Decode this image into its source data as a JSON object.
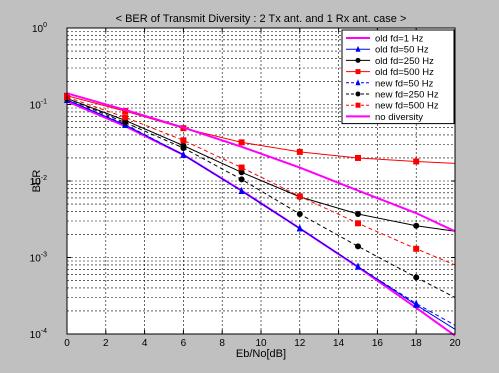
{
  "chart_data": {
    "type": "line",
    "title": "< BER of Transmit Diversity : 2 Tx ant. and 1 Rx ant. case >",
    "xlabel": "Eb/No[dB]",
    "ylabel": "BER",
    "xlim": [
      0,
      20
    ],
    "ylim": [
      0.0001,
      1
    ],
    "yscale": "log",
    "grid": true,
    "legend_position": "top-right",
    "x_ticks": [
      "0",
      "2",
      "4",
      "6",
      "8",
      "10",
      "12",
      "14",
      "16",
      "18",
      "20"
    ],
    "y_ticks": [
      {
        "base": "10",
        "exp": "0",
        "value": 1
      },
      {
        "base": "10",
        "exp": "-1",
        "value": 0.1
      },
      {
        "base": "10",
        "exp": "-2",
        "value": 0.01
      },
      {
        "base": "10",
        "exp": "-3",
        "value": 0.001
      },
      {
        "base": "10",
        "exp": "-4",
        "value": 0.0001
      }
    ],
    "series": [
      {
        "name": "old fd=1 Hz",
        "color": "#ff00ff",
        "marker": "none",
        "dash": "solid",
        "width": 2,
        "x": [
          0,
          3,
          6,
          9,
          12,
          15,
          18,
          20
        ],
        "y": [
          0.11,
          0.052,
          0.022,
          0.0075,
          0.0024,
          0.00075,
          0.00022,
          9.5e-05
        ]
      },
      {
        "name": "old fd=50 Hz",
        "color": "#0000ff",
        "marker": "triangle",
        "dash": "solid",
        "width": 1,
        "x": [
          0,
          3,
          6,
          9,
          12,
          15,
          18,
          20
        ],
        "y": [
          0.115,
          0.054,
          0.022,
          0.0074,
          0.0024,
          0.00076,
          0.00024,
          0.000115
        ]
      },
      {
        "name": "old fd=250 Hz",
        "color": "#000000",
        "marker": "circle",
        "dash": "solid",
        "width": 1,
        "x": [
          0,
          3,
          6,
          9,
          12,
          15,
          18,
          20
        ],
        "y": [
          0.12,
          0.062,
          0.029,
          0.013,
          0.0062,
          0.0037,
          0.0026,
          0.0022
        ]
      },
      {
        "name": "old fd=500 Hz",
        "color": "#ff0000",
        "marker": "square",
        "dash": "solid",
        "width": 1,
        "x": [
          0,
          3,
          6,
          9,
          12,
          15,
          18,
          20
        ],
        "y": [
          0.13,
          0.082,
          0.049,
          0.032,
          0.024,
          0.02,
          0.018,
          0.017
        ]
      },
      {
        "name": "new fd=50 Hz",
        "color": "#0000ff",
        "marker": "triangle",
        "dash": "dash",
        "width": 1,
        "x": [
          0,
          3,
          6,
          9,
          12,
          15,
          18,
          20
        ],
        "y": [
          0.115,
          0.055,
          0.022,
          0.0074,
          0.0024,
          0.00076,
          0.00025,
          0.00013
        ]
      },
      {
        "name": "new fd=250 Hz",
        "color": "#000000",
        "marker": "circle",
        "dash": "dash",
        "width": 1,
        "x": [
          0,
          3,
          6,
          9,
          12,
          15,
          18,
          20
        ],
        "y": [
          0.12,
          0.058,
          0.027,
          0.0105,
          0.0037,
          0.0014,
          0.00055,
          0.0003
        ]
      },
      {
        "name": "new fd=500 Hz",
        "color": "#ff0000",
        "marker": "square",
        "dash": "dash",
        "width": 1,
        "x": [
          0,
          3,
          6,
          9,
          12,
          15,
          18,
          20
        ],
        "y": [
          0.125,
          0.068,
          0.034,
          0.015,
          0.0063,
          0.0028,
          0.0013,
          0.0008
        ]
      },
      {
        "name": "no diversity",
        "color": "#ff00ff",
        "marker": "none",
        "dash": "solid",
        "width": 2,
        "x": [
          0,
          3,
          6,
          9,
          12,
          15,
          18,
          20
        ],
        "y": [
          0.14,
          0.085,
          0.05,
          0.028,
          0.015,
          0.0075,
          0.0038,
          0.0022
        ]
      }
    ]
  }
}
